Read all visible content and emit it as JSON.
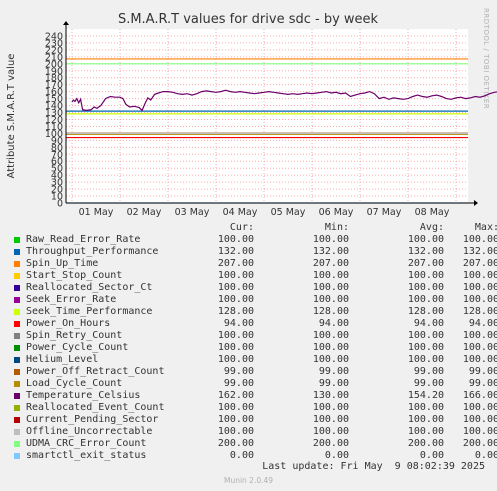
{
  "chart_data": {
    "type": "line",
    "title": "S.M.A.R.T values for drive sdc - by week",
    "ylabel": "Attribute S.M.A.R.T value",
    "ylim": [
      0,
      250
    ],
    "yticks": [
      0,
      10,
      20,
      30,
      40,
      50,
      60,
      70,
      80,
      90,
      100,
      110,
      120,
      130,
      140,
      150,
      160,
      170,
      180,
      190,
      200,
      210,
      220,
      230,
      240
    ],
    "xticks": [
      "01 May",
      "02 May",
      "03 May",
      "04 May",
      "05 May",
      "06 May",
      "07 May",
      "08 May"
    ],
    "grid": true,
    "watermark": "RRDTOOL / TOBI OETIKER",
    "temperature_series": [
      [
        0.0,
        145
      ],
      [
        0.03,
        148
      ],
      [
        0.06,
        146
      ],
      [
        0.1,
        150
      ],
      [
        0.14,
        144
      ],
      [
        0.18,
        149
      ],
      [
        0.22,
        134
      ],
      [
        0.3,
        133
      ],
      [
        0.4,
        134
      ],
      [
        0.46,
        138
      ],
      [
        0.52,
        136
      ],
      [
        0.6,
        140
      ],
      [
        0.7,
        150
      ],
      [
        0.8,
        153
      ],
      [
        0.9,
        152
      ],
      [
        1.0,
        152
      ],
      [
        1.06,
        150
      ],
      [
        1.12,
        142
      ],
      [
        1.2,
        138
      ],
      [
        1.3,
        139
      ],
      [
        1.4,
        137
      ],
      [
        1.46,
        133
      ],
      [
        1.52,
        143
      ],
      [
        1.58,
        151
      ],
      [
        1.64,
        148
      ],
      [
        1.72,
        156
      ],
      [
        1.8,
        158
      ],
      [
        1.9,
        160
      ],
      [
        2.0,
        160
      ],
      [
        2.1,
        159
      ],
      [
        2.2,
        157
      ],
      [
        2.3,
        156
      ],
      [
        2.4,
        157
      ],
      [
        2.5,
        155
      ],
      [
        2.6,
        157
      ],
      [
        2.7,
        160
      ],
      [
        2.8,
        161
      ],
      [
        2.9,
        160
      ],
      [
        3.0,
        159
      ],
      [
        3.1,
        160
      ],
      [
        3.2,
        162
      ],
      [
        3.3,
        160
      ],
      [
        3.4,
        159
      ],
      [
        3.5,
        160
      ],
      [
        3.6,
        159
      ],
      [
        3.7,
        158
      ],
      [
        3.8,
        157
      ],
      [
        3.9,
        158
      ],
      [
        4.0,
        159
      ],
      [
        4.1,
        160
      ],
      [
        4.2,
        159
      ],
      [
        4.3,
        158
      ],
      [
        4.4,
        157
      ],
      [
        4.5,
        156
      ],
      [
        4.6,
        157
      ],
      [
        4.7,
        156
      ],
      [
        4.8,
        157
      ],
      [
        4.9,
        158
      ],
      [
        5.0,
        157
      ],
      [
        5.1,
        158
      ],
      [
        5.2,
        159
      ],
      [
        5.3,
        160
      ],
      [
        5.4,
        158
      ],
      [
        5.5,
        159
      ],
      [
        5.6,
        157
      ],
      [
        5.7,
        158
      ],
      [
        5.8,
        153
      ],
      [
        5.9,
        155
      ],
      [
        6.0,
        157
      ],
      [
        6.1,
        158
      ],
      [
        6.2,
        160
      ],
      [
        6.3,
        157
      ],
      [
        6.4,
        150
      ],
      [
        6.5,
        152
      ],
      [
        6.6,
        149
      ],
      [
        6.7,
        151
      ],
      [
        6.8,
        150
      ],
      [
        6.9,
        149
      ],
      [
        7.0,
        150
      ],
      [
        7.1,
        153
      ],
      [
        7.2,
        155
      ],
      [
        7.3,
        153
      ],
      [
        7.4,
        152
      ],
      [
        7.5,
        154
      ],
      [
        7.6,
        155
      ],
      [
        7.7,
        153
      ],
      [
        7.8,
        150
      ],
      [
        7.9,
        149
      ],
      [
        8.0,
        151
      ],
      [
        8.1,
        152
      ],
      [
        8.2,
        150
      ],
      [
        8.3,
        151
      ],
      [
        8.4,
        153
      ],
      [
        8.5,
        152
      ],
      [
        8.6,
        154
      ],
      [
        8.7,
        157
      ],
      [
        8.8,
        159
      ],
      [
        8.9,
        160
      ],
      [
        9.0,
        157
      ],
      [
        9.1,
        160
      ],
      [
        9.2,
        162
      ],
      [
        9.3,
        158
      ]
    ],
    "legend_header": {
      "cur": "Cur:",
      "min": "Min:",
      "avg": "Avg:",
      "max": "Max:"
    },
    "series": [
      {
        "name": "Raw_Read_Error_Rate",
        "color": "#00cc00",
        "cur": "100.00",
        "min": "100.00",
        "avg": "100.00",
        "max": "100.00",
        "value": 100
      },
      {
        "name": "Throughput_Performance",
        "color": "#0066b3",
        "cur": "132.00",
        "min": "132.00",
        "avg": "132.00",
        "max": "132.00",
        "value": 132
      },
      {
        "name": "Spin_Up_Time",
        "color": "#ff8000",
        "cur": "207.00",
        "min": "207.00",
        "avg": "207.00",
        "max": "207.00",
        "value": 207
      },
      {
        "name": "Start_Stop_Count",
        "color": "#ffcc00",
        "cur": "100.00",
        "min": "100.00",
        "avg": "100.00",
        "max": "100.00",
        "value": 100
      },
      {
        "name": "Reallocated_Sector_Ct",
        "color": "#330099",
        "cur": "100.00",
        "min": "100.00",
        "avg": "100.00",
        "max": "100.00",
        "value": 100
      },
      {
        "name": "Seek_Error_Rate",
        "color": "#990099",
        "cur": "100.00",
        "min": "100.00",
        "avg": "100.00",
        "max": "100.00",
        "value": 100
      },
      {
        "name": "Seek_Time_Performance",
        "color": "#ccff00",
        "cur": "128.00",
        "min": "128.00",
        "avg": "128.00",
        "max": "128.00",
        "value": 128
      },
      {
        "name": "Power_On_Hours",
        "color": "#ff0000",
        "cur": "94.00",
        "min": "94.00",
        "avg": "94.00",
        "max": "94.00",
        "value": 94
      },
      {
        "name": "Spin_Retry_Count",
        "color": "#808080",
        "cur": "100.00",
        "min": "100.00",
        "avg": "100.00",
        "max": "100.00",
        "value": 100
      },
      {
        "name": "Power_Cycle_Count",
        "color": "#008f00",
        "cur": "100.00",
        "min": "100.00",
        "avg": "100.00",
        "max": "100.00",
        "value": 100
      },
      {
        "name": "Helium_Level",
        "color": "#00487d",
        "cur": "100.00",
        "min": "100.00",
        "avg": "100.00",
        "max": "100.00",
        "value": 100
      },
      {
        "name": "Power_Off_Retract_Count",
        "color": "#b35a00",
        "cur": "99.00",
        "min": "99.00",
        "avg": "99.00",
        "max": "99.00",
        "value": 99
      },
      {
        "name": "Load_Cycle_Count",
        "color": "#b38f00",
        "cur": "99.00",
        "min": "99.00",
        "avg": "99.00",
        "max": "99.00",
        "value": 99
      },
      {
        "name": "Temperature_Celsius",
        "color": "#6b006b",
        "cur": "162.00",
        "min": "130.00",
        "avg": "154.20",
        "max": "166.00"
      },
      {
        "name": "Reallocated_Event_Count",
        "color": "#8fb300",
        "cur": "100.00",
        "min": "100.00",
        "avg": "100.00",
        "max": "100.00",
        "value": 100
      },
      {
        "name": "Current_Pending_Sector",
        "color": "#b30000",
        "cur": "100.00",
        "min": "100.00",
        "avg": "100.00",
        "max": "100.00",
        "value": 100
      },
      {
        "name": "Offline_Uncorrectable",
        "color": "#bebebe",
        "cur": "100.00",
        "min": "100.00",
        "avg": "100.00",
        "max": "100.00",
        "value": 100
      },
      {
        "name": "UDMA_CRC_Error_Count",
        "color": "#80ff80",
        "cur": "200.00",
        "min": "200.00",
        "avg": "200.00",
        "max": "200.00",
        "value": 200
      },
      {
        "name": "smartctl_exit_status",
        "color": "#80c9ff",
        "cur": "0.00",
        "min": "0.00",
        "avg": "0.00",
        "max": "0.00",
        "value": 0
      }
    ],
    "last_update": "Last update: Fri May  9 08:02:39 2025",
    "footer": "Munin 2.0.49"
  }
}
